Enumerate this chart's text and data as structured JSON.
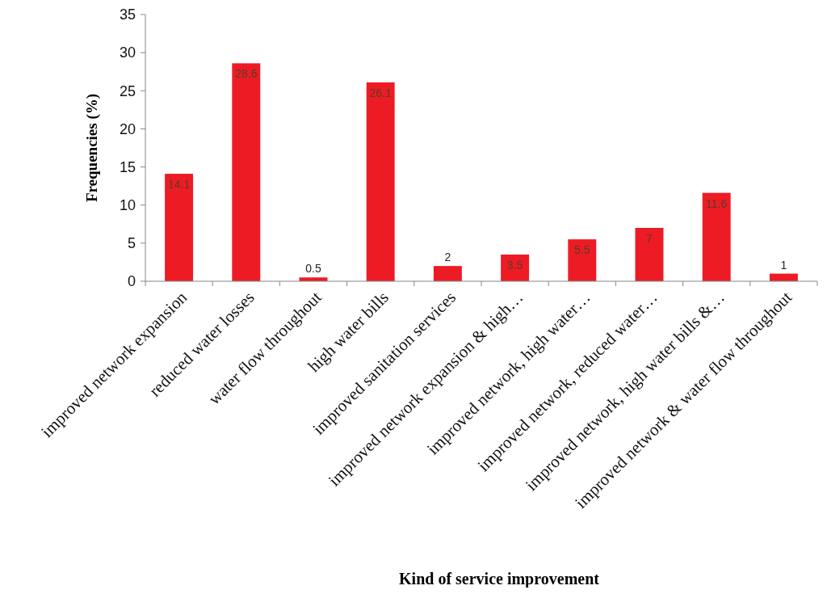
{
  "chart_data": {
    "type": "bar",
    "xlabel": "Kind of service improvement",
    "ylabel": "Frequencies (%)",
    "categories": [
      "improved network expansion",
      "reduced water losses",
      "water flow throughout",
      "high water bills",
      "improved sanitation services",
      "improved network expansion & high…",
      "improved network, high water…",
      "improved network, reduced water…",
      "improved network, high water bills &…",
      "improved network & water flow throughout"
    ],
    "values": [
      14.1,
      28.6,
      0.5,
      26.1,
      2,
      3.5,
      5.5,
      7,
      11.6,
      1
    ],
    "color": "#ed1c24",
    "ylim": [
      0,
      35
    ],
    "yticks": [
      0,
      5,
      10,
      15,
      20,
      25,
      30,
      35
    ],
    "data_labels": true
  }
}
